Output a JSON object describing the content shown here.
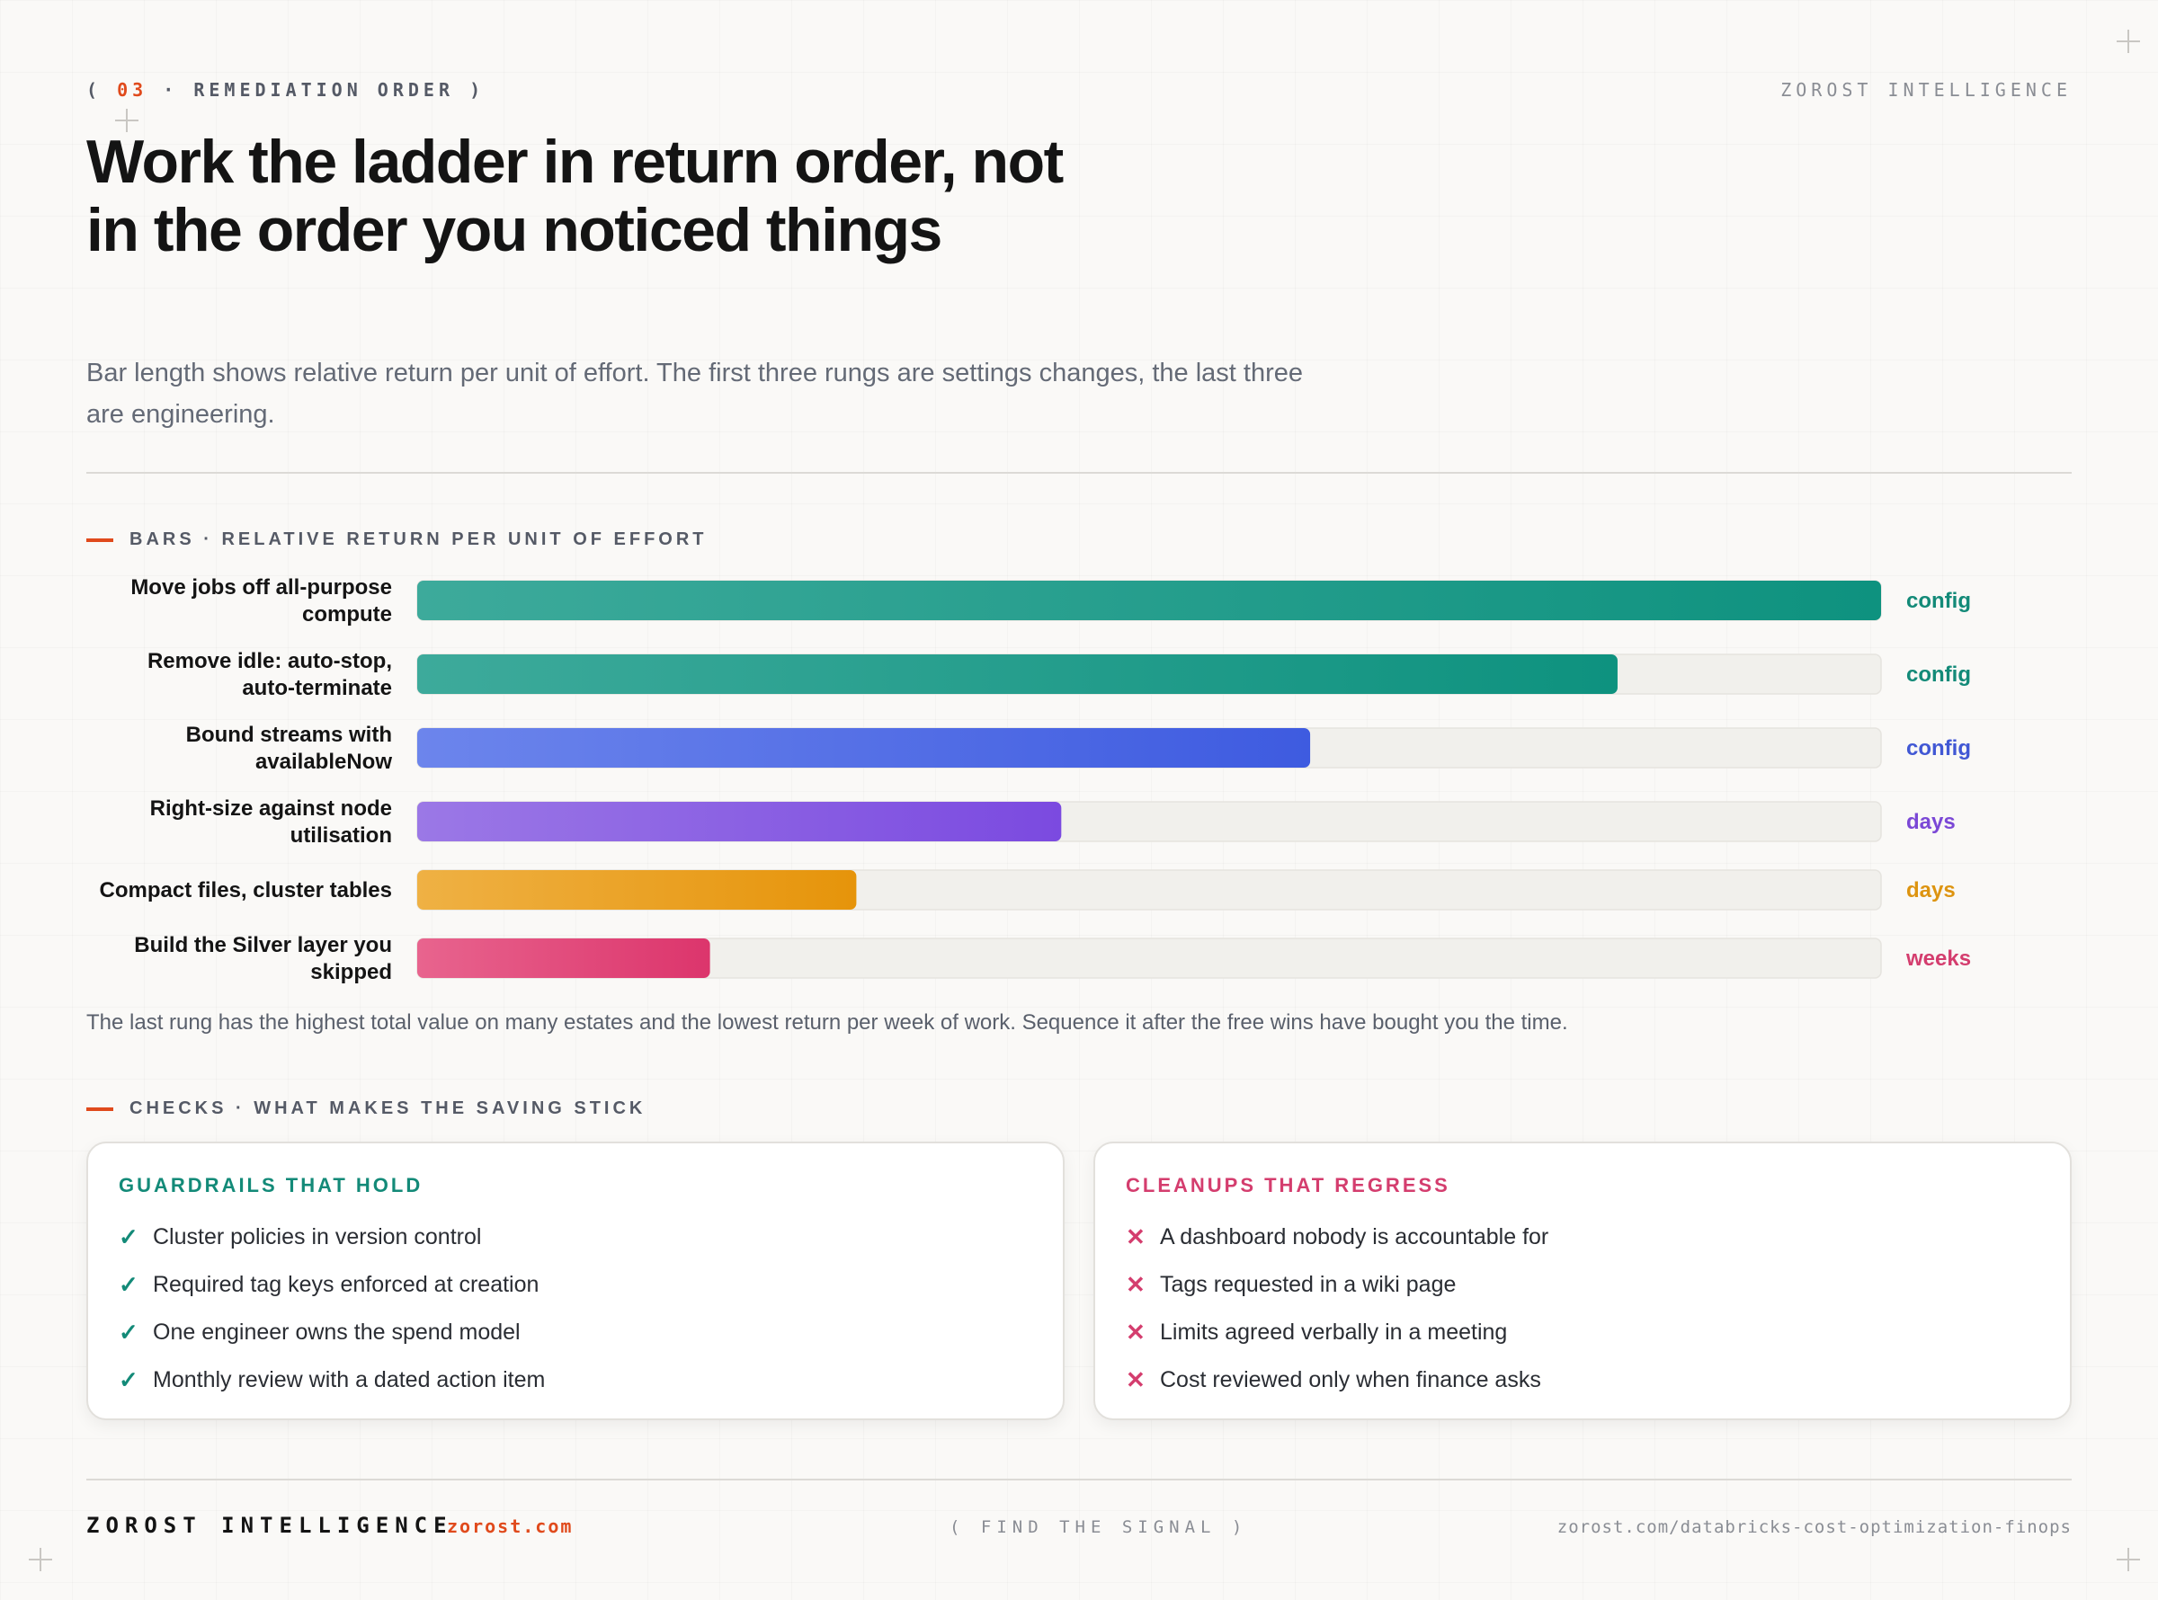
{
  "header": {
    "eyebrow_open": "(",
    "eyebrow_num": "03",
    "eyebrow_text": "· REMEDIATION ORDER",
    "eyebrow_close": ")",
    "brand": "ZOROST INTELLIGENCE"
  },
  "title": "Work the ladder in return order, not in the order you noticed things",
  "subtitle": "Bar length shows relative return per unit of effort. The first three rungs are settings changes, the last three are engineering.",
  "bars_section_label": "BARS · RELATIVE RETURN PER UNIT OF EFFORT",
  "chart_data": {
    "type": "bar",
    "orientation": "horizontal",
    "title": "",
    "xlabel": "",
    "ylabel": "",
    "xlim": [
      0,
      100
    ],
    "grid": false,
    "axis_ticks_shown": false,
    "categories": [
      [
        "Move jobs off all-purpose",
        "compute"
      ],
      [
        "Remove idle: auto-stop,",
        "auto-terminate"
      ],
      [
        "Bound streams with",
        "availableNow"
      ],
      [
        "Right-size against node",
        "utilisation"
      ],
      [
        "Compact files, cluster tables"
      ],
      [
        "Build the Silver layer you",
        "skipped"
      ]
    ],
    "values": [
      100,
      82,
      61,
      44,
      30,
      20
    ],
    "effort_tags": [
      "config",
      "config",
      "config",
      "days",
      "days",
      "weeks"
    ],
    "colors": [
      [
        "#3daa9b",
        "#0e927f"
      ],
      [
        "#3daa9b",
        "#0e927f"
      ],
      [
        "#6c85ec",
        "#3e5be0"
      ],
      [
        "#9b78e6",
        "#7b4ae0"
      ],
      [
        "#efb144",
        "#e6940a"
      ],
      [
        "#e8648e",
        "#dc356c"
      ]
    ],
    "tag_colors": [
      "#138a78",
      "#138a78",
      "#4158d4",
      "#7b48d6",
      "#dd9410",
      "#d43d6e"
    ]
  },
  "footnote": "The last rung has the highest total value on many estates and the lowest return per week of work. Sequence it after the free wins have bought you the time.",
  "checks_section_label": "CHECKS · WHAT MAKES THE SAVING STICK",
  "cards": {
    "good": {
      "title": "GUARDRAILS THAT HOLD",
      "icon": "check-icon",
      "items": [
        "Cluster policies in version control",
        "Required tag keys enforced at creation",
        "One engineer owns the spend model",
        "Monthly review with a dated action item"
      ]
    },
    "bad": {
      "title": "CLEANUPS THAT REGRESS",
      "icon": "cross-icon",
      "items": [
        "A dashboard nobody is accountable for",
        "Tags requested in a wiki page",
        "Limits agreed verbally in a meeting",
        "Cost reviewed only when finance asks"
      ]
    }
  },
  "footer": {
    "brand": "ZOROST INTELLIGENCE",
    "url": "zorost.com",
    "tagline": "( FIND THE SIGNAL )",
    "link": "zorost.com/databricks-cost-optimization-finops"
  }
}
